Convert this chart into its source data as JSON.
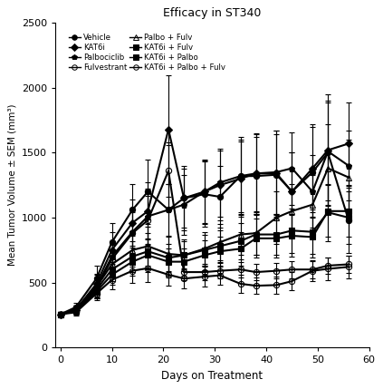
{
  "title": "Efficacy in ST340",
  "xlabel": "Days on Treatment",
  "ylabel": "Mean Tumor Volume ± SEM (mm³)",
  "xlim": [
    -1,
    60
  ],
  "ylim": [
    0,
    2500
  ],
  "yticks": [
    0,
    500,
    1000,
    1500,
    2000,
    2500
  ],
  "xticks": [
    0,
    10,
    20,
    30,
    40,
    50,
    60
  ],
  "series": [
    {
      "label": "Vehicle",
      "marker": "o",
      "fillstyle": "full",
      "color": "black",
      "linewidth": 1.5,
      "markersize": 4.5,
      "x": [
        0,
        3,
        7,
        10,
        14,
        17,
        21,
        24,
        28,
        31,
        35,
        38,
        42,
        45,
        49,
        52,
        56
      ],
      "y": [
        255,
        310,
        530,
        810,
        1060,
        1200,
        1060,
        1150,
        1180,
        1160,
        1320,
        1320,
        1330,
        1200,
        1350,
        1500,
        980
      ],
      "yerr": [
        20,
        30,
        100,
        150,
        200,
        250,
        520,
        250,
        250,
        240,
        300,
        300,
        310,
        300,
        350,
        400,
        250
      ]
    },
    {
      "label": "KAT6i",
      "marker": "D",
      "fillstyle": "full",
      "color": "black",
      "linewidth": 1.5,
      "markersize": 4,
      "x": [
        0,
        3,
        7,
        10,
        14,
        17,
        21,
        24,
        28,
        31,
        35,
        38,
        42,
        45,
        49,
        52,
        56
      ],
      "y": [
        255,
        290,
        490,
        750,
        960,
        1050,
        1680,
        1150,
        1200,
        1250,
        1300,
        1340,
        1340,
        1200,
        1380,
        1520,
        1570
      ],
      "yerr": [
        20,
        30,
        80,
        140,
        180,
        220,
        420,
        230,
        250,
        270,
        290,
        310,
        330,
        300,
        340,
        430,
        320
      ]
    },
    {
      "label": "Palbociclib",
      "marker": "p",
      "fillstyle": "full",
      "color": "black",
      "linewidth": 1.5,
      "markersize": 5,
      "x": [
        0,
        3,
        7,
        10,
        14,
        17,
        21,
        24,
        28,
        31,
        35,
        38,
        42,
        45,
        49,
        52,
        56
      ],
      "y": [
        255,
        295,
        470,
        700,
        890,
        1010,
        1060,
        1100,
        1200,
        1270,
        1320,
        1340,
        1350,
        1380,
        1200,
        1510,
        1400
      ],
      "yerr": [
        20,
        30,
        90,
        120,
        170,
        210,
        200,
        230,
        240,
        260,
        280,
        300,
        320,
        280,
        280,
        380,
        270
      ]
    },
    {
      "label": "Fulvestrant",
      "marker": "o",
      "fillstyle": "none",
      "color": "black",
      "linewidth": 1.5,
      "markersize": 4.5,
      "x": [
        0,
        3,
        7,
        10,
        14,
        17,
        21,
        24,
        28,
        31,
        35,
        38,
        42,
        45,
        49,
        52,
        56
      ],
      "y": [
        255,
        290,
        460,
        680,
        880,
        980,
        1360,
        580,
        580,
        590,
        600,
        580,
        590,
        600,
        600,
        630,
        640
      ],
      "yerr": [
        20,
        30,
        80,
        110,
        160,
        190,
        200,
        60,
        60,
        60,
        60,
        60,
        60,
        65,
        65,
        65,
        65
      ]
    },
    {
      "label": "Palbo + Fulv",
      "marker": "^",
      "fillstyle": "none",
      "color": "black",
      "linewidth": 1.5,
      "markersize": 5,
      "x": [
        0,
        3,
        7,
        10,
        14,
        17,
        21,
        24,
        28,
        31,
        35,
        38,
        42,
        45,
        49,
        52,
        56
      ],
      "y": [
        255,
        295,
        465,
        640,
        750,
        780,
        720,
        710,
        760,
        810,
        870,
        880,
        1000,
        1050,
        1100,
        1380,
        1310
      ],
      "yerr": [
        20,
        30,
        70,
        100,
        130,
        150,
        130,
        120,
        130,
        140,
        160,
        170,
        200,
        210,
        230,
        340,
        290
      ]
    },
    {
      "label": "KAT6i + Fulv",
      "marker": "s",
      "fillstyle": "full",
      "color": "black",
      "linewidth": 1.5,
      "markersize": 4,
      "x": [
        0,
        3,
        7,
        10,
        14,
        17,
        21,
        24,
        28,
        31,
        35,
        38,
        42,
        45,
        49,
        52,
        56
      ],
      "y": [
        255,
        285,
        445,
        600,
        700,
        740,
        690,
        710,
        750,
        780,
        820,
        870,
        870,
        900,
        890,
        1040,
        1000
      ],
      "yerr": [
        20,
        25,
        60,
        90,
        120,
        140,
        110,
        110,
        120,
        125,
        140,
        160,
        160,
        170,
        170,
        220,
        200
      ]
    },
    {
      "label": "KAT6i + Palbo",
      "marker": "s",
      "fillstyle": "full",
      "color": "black",
      "linewidth": 1.5,
      "markersize": 4,
      "x": [
        0,
        3,
        7,
        10,
        14,
        17,
        21,
        24,
        28,
        31,
        35,
        38,
        42,
        45,
        49,
        52,
        56
      ],
      "y": [
        255,
        280,
        430,
        560,
        660,
        710,
        660,
        660,
        710,
        740,
        760,
        840,
        840,
        860,
        850,
        1050,
        1050
      ],
      "yerr": [
        20,
        25,
        55,
        80,
        110,
        130,
        105,
        105,
        115,
        115,
        130,
        150,
        150,
        160,
        160,
        200,
        195
      ]
    },
    {
      "label": "KAT6i + Palbo + Fulv",
      "marker": "o",
      "fillstyle": "none",
      "color": "black",
      "linewidth": 1.5,
      "markersize": 4.5,
      "x": [
        0,
        3,
        7,
        10,
        14,
        17,
        21,
        24,
        28,
        31,
        35,
        38,
        42,
        45,
        49,
        52,
        56
      ],
      "y": [
        255,
        270,
        415,
        520,
        590,
        610,
        560,
        530,
        545,
        555,
        490,
        475,
        480,
        510,
        590,
        605,
        620
      ],
      "yerr": [
        20,
        22,
        50,
        70,
        95,
        105,
        85,
        75,
        75,
        75,
        68,
        65,
        65,
        70,
        80,
        85,
        88
      ]
    }
  ],
  "legend_left": [
    "Vehicle",
    "KAT6i",
    "Palbociclib",
    "Fulvestrant"
  ],
  "legend_right": [
    "Palbo + Fulv",
    "KAT6i + Fulv",
    "KAT6i + Palbo",
    "KAT6i + Palbo + Fulv"
  ]
}
